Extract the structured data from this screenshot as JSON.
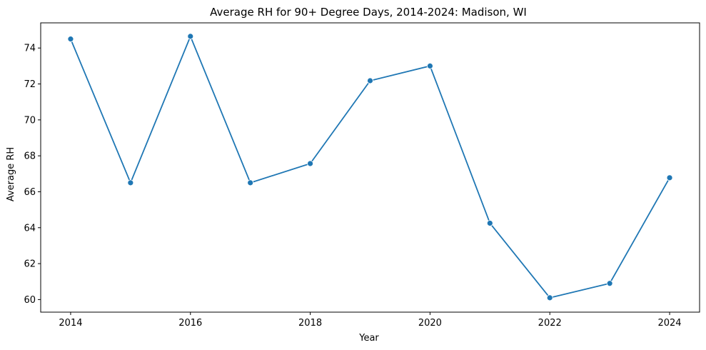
{
  "chart_data": {
    "type": "line",
    "title": "Average RH for 90+ Degree Days, 2014-2024: Madison, WI",
    "xlabel": "Year",
    "ylabel": "Average RH",
    "xlim": [
      2013.5,
      2024.5
    ],
    "ylim": [
      59.3,
      75.4
    ],
    "xticks": [
      2014,
      2016,
      2018,
      2020,
      2022,
      2024
    ],
    "yticks": [
      60,
      62,
      64,
      66,
      68,
      70,
      72,
      74
    ],
    "grid": false,
    "legend": "none",
    "color": "#1f77b4",
    "marker": "circle",
    "series": [
      {
        "x": [
          2014,
          2015,
          2016,
          2017,
          2018,
          2019,
          2020,
          2021,
          2022,
          2023,
          2024
        ],
        "values": [
          74.5,
          66.5,
          74.65,
          66.5,
          67.57,
          72.18,
          73.0,
          64.25,
          60.1,
          60.9,
          66.78
        ]
      }
    ]
  }
}
